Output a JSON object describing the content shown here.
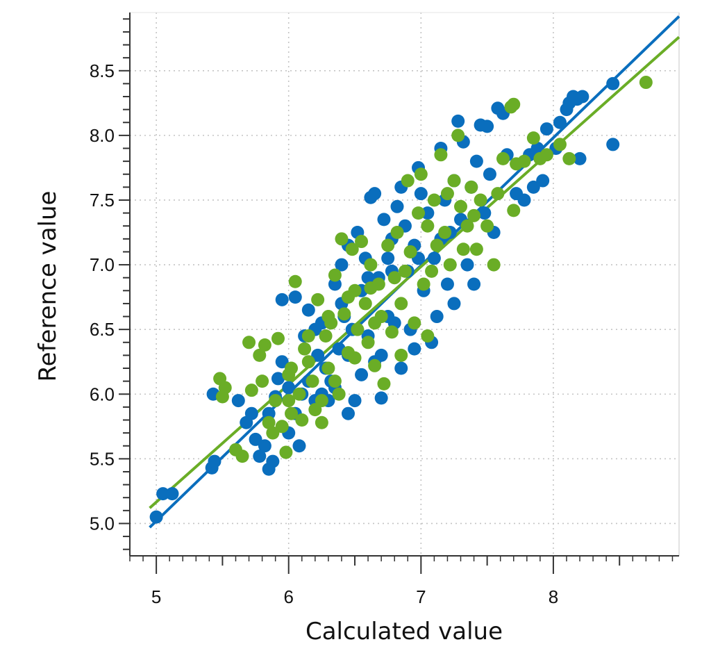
{
  "chart_data": {
    "type": "scatter",
    "title": "",
    "xlabel": "Calculated value",
    "ylabel": "Reference value",
    "xlim": [
      4.8,
      8.95
    ],
    "ylim": [
      4.75,
      8.95
    ],
    "x_ticks": [
      "5",
      "6",
      "7",
      "8"
    ],
    "y_ticks": [
      "5.0",
      "5.5",
      "6.0",
      "6.5",
      "7.0",
      "7.5",
      "8.0",
      "8.5"
    ],
    "grid": true,
    "legend": "none",
    "series": [
      {
        "color": "#0a6ebd",
        "points": [
          [
            5.0,
            5.05
          ],
          [
            5.05,
            5.23
          ],
          [
            5.12,
            5.23
          ],
          [
            5.42,
            5.43
          ],
          [
            5.44,
            5.48
          ],
          [
            5.43,
            6.0
          ],
          [
            5.62,
            5.95
          ],
          [
            5.68,
            5.78
          ],
          [
            5.72,
            5.85
          ],
          [
            5.78,
            5.52
          ],
          [
            5.82,
            5.6
          ],
          [
            5.85,
            5.42
          ],
          [
            5.88,
            5.48
          ],
          [
            5.9,
            5.98
          ],
          [
            5.92,
            6.12
          ],
          [
            5.95,
            6.25
          ],
          [
            5.95,
            6.73
          ],
          [
            6.05,
            6.75
          ],
          [
            6.0,
            5.7
          ],
          [
            6.05,
            5.85
          ],
          [
            6.1,
            6.0
          ],
          [
            6.12,
            6.45
          ],
          [
            6.15,
            6.65
          ],
          [
            6.08,
            5.6
          ],
          [
            6.2,
            5.95
          ],
          [
            6.22,
            6.3
          ],
          [
            6.25,
            6.55
          ],
          [
            6.28,
            6.2
          ],
          [
            6.3,
            5.95
          ],
          [
            6.32,
            6.1
          ],
          [
            6.35,
            6.85
          ],
          [
            6.38,
            6.35
          ],
          [
            6.4,
            7.0
          ],
          [
            6.42,
            6.6
          ],
          [
            6.45,
            6.3
          ],
          [
            6.45,
            7.15
          ],
          [
            6.48,
            6.5
          ],
          [
            6.5,
            5.95
          ],
          [
            6.52,
            7.25
          ],
          [
            6.55,
            6.8
          ],
          [
            6.58,
            7.05
          ],
          [
            6.6,
            6.45
          ],
          [
            6.62,
            7.52
          ],
          [
            6.65,
            7.55
          ],
          [
            6.68,
            6.9
          ],
          [
            6.7,
            6.3
          ],
          [
            6.72,
            7.35
          ],
          [
            6.75,
            7.05
          ],
          [
            6.75,
            6.6
          ],
          [
            6.78,
            7.2
          ],
          [
            6.8,
            6.55
          ],
          [
            6.82,
            7.45
          ],
          [
            6.85,
            7.6
          ],
          [
            6.88,
            7.3
          ],
          [
            6.9,
            6.95
          ],
          [
            6.92,
            6.5
          ],
          [
            6.95,
            7.15
          ],
          [
            6.98,
            7.75
          ],
          [
            7.0,
            7.55
          ],
          [
            7.02,
            6.8
          ],
          [
            7.05,
            7.4
          ],
          [
            7.08,
            6.4
          ],
          [
            7.1,
            7.05
          ],
          [
            7.12,
            6.6
          ],
          [
            7.15,
            7.9
          ],
          [
            7.18,
            7.5
          ],
          [
            7.2,
            6.85
          ],
          [
            7.22,
            7.25
          ],
          [
            7.25,
            7.65
          ],
          [
            7.25,
            6.7
          ],
          [
            7.28,
            8.11
          ],
          [
            7.3,
            7.35
          ],
          [
            7.32,
            7.95
          ],
          [
            7.35,
            7.0
          ],
          [
            7.38,
            7.6
          ],
          [
            7.4,
            6.85
          ],
          [
            7.42,
            7.8
          ],
          [
            7.45,
            8.08
          ],
          [
            7.48,
            7.4
          ],
          [
            7.5,
            8.07
          ],
          [
            7.52,
            7.7
          ],
          [
            7.55,
            7.25
          ],
          [
            7.58,
            8.21
          ],
          [
            7.62,
            8.17
          ],
          [
            7.65,
            7.85
          ],
          [
            7.72,
            7.55
          ],
          [
            7.78,
            7.5
          ],
          [
            7.82,
            7.85
          ],
          [
            7.85,
            7.6
          ],
          [
            7.88,
            7.9
          ],
          [
            7.92,
            7.65
          ],
          [
            7.95,
            8.05
          ],
          [
            8.02,
            7.9
          ],
          [
            8.05,
            8.1
          ],
          [
            8.1,
            8.2
          ],
          [
            8.12,
            8.25
          ],
          [
            8.15,
            8.3
          ],
          [
            8.18,
            8.28
          ],
          [
            8.2,
            7.82
          ],
          [
            8.22,
            8.3
          ],
          [
            8.45,
            8.4
          ],
          [
            8.45,
            7.93
          ],
          [
            6.15,
            6.1
          ],
          [
            6.35,
            6.05
          ],
          [
            6.55,
            6.15
          ],
          [
            6.65,
            6.25
          ],
          [
            6.85,
            6.2
          ],
          [
            6.95,
            6.35
          ],
          [
            6.2,
            6.5
          ],
          [
            6.4,
            6.7
          ],
          [
            6.6,
            6.9
          ],
          [
            6.78,
            6.95
          ],
          [
            6.98,
            7.05
          ],
          [
            7.15,
            7.2
          ],
          [
            5.75,
            5.65
          ],
          [
            5.85,
            5.85
          ],
          [
            6.0,
            6.05
          ],
          [
            6.25,
            6.0
          ],
          [
            6.45,
            5.85
          ],
          [
            6.7,
            5.97
          ]
        ]
      },
      {
        "color": "#6aad26",
        "points": [
          [
            5.48,
            6.12
          ],
          [
            5.5,
            5.98
          ],
          [
            5.52,
            6.05
          ],
          [
            5.6,
            5.57
          ],
          [
            5.65,
            5.52
          ],
          [
            5.7,
            6.4
          ],
          [
            5.72,
            6.03
          ],
          [
            5.78,
            6.3
          ],
          [
            5.8,
            6.1
          ],
          [
            5.82,
            6.38
          ],
          [
            5.85,
            5.78
          ],
          [
            5.9,
            5.95
          ],
          [
            5.92,
            6.43
          ],
          [
            5.95,
            5.75
          ],
          [
            5.98,
            5.55
          ],
          [
            6.0,
            6.15
          ],
          [
            6.02,
            5.85
          ],
          [
            6.05,
            6.87
          ],
          [
            6.08,
            6.0
          ],
          [
            6.12,
            6.35
          ],
          [
            6.15,
            6.25
          ],
          [
            6.18,
            6.1
          ],
          [
            6.2,
            5.88
          ],
          [
            6.22,
            6.73
          ],
          [
            6.25,
            5.78
          ],
          [
            6.28,
            6.45
          ],
          [
            6.3,
            6.2
          ],
          [
            6.32,
            6.55
          ],
          [
            6.35,
            6.92
          ],
          [
            6.38,
            6.0
          ],
          [
            6.4,
            7.2
          ],
          [
            6.42,
            6.62
          ],
          [
            6.45,
            6.32
          ],
          [
            6.48,
            7.12
          ],
          [
            6.5,
            6.8
          ],
          [
            6.52,
            6.5
          ],
          [
            6.55,
            7.18
          ],
          [
            6.58,
            6.7
          ],
          [
            6.6,
            6.4
          ],
          [
            6.62,
            7.0
          ],
          [
            6.65,
            6.22
          ],
          [
            6.68,
            6.85
          ],
          [
            6.7,
            6.6
          ],
          [
            6.72,
            6.08
          ],
          [
            6.75,
            7.15
          ],
          [
            6.78,
            6.48
          ],
          [
            6.8,
            6.9
          ],
          [
            6.82,
            7.25
          ],
          [
            6.85,
            6.7
          ],
          [
            6.88,
            6.95
          ],
          [
            6.9,
            7.65
          ],
          [
            6.92,
            7.1
          ],
          [
            6.95,
            6.55
          ],
          [
            6.98,
            7.4
          ],
          [
            7.0,
            7.7
          ],
          [
            7.02,
            6.85
          ],
          [
            7.05,
            7.3
          ],
          [
            7.08,
            6.95
          ],
          [
            7.1,
            7.5
          ],
          [
            7.12,
            7.15
          ],
          [
            7.15,
            7.85
          ],
          [
            7.18,
            7.25
          ],
          [
            7.2,
            7.55
          ],
          [
            7.22,
            7.0
          ],
          [
            7.25,
            7.65
          ],
          [
            7.28,
            8.0
          ],
          [
            7.3,
            7.45
          ],
          [
            7.32,
            7.12
          ],
          [
            7.35,
            7.3
          ],
          [
            7.38,
            7.6
          ],
          [
            7.4,
            7.38
          ],
          [
            7.42,
            7.12
          ],
          [
            7.45,
            7.5
          ],
          [
            7.5,
            7.3
          ],
          [
            7.55,
            7.0
          ],
          [
            7.58,
            7.55
          ],
          [
            7.62,
            7.82
          ],
          [
            7.68,
            8.22
          ],
          [
            7.7,
            7.42
          ],
          [
            7.72,
            7.78
          ],
          [
            7.78,
            7.8
          ],
          [
            7.85,
            7.98
          ],
          [
            7.9,
            7.82
          ],
          [
            7.95,
            7.85
          ],
          [
            8.05,
            7.93
          ],
          [
            8.12,
            7.82
          ],
          [
            8.7,
            8.41
          ],
          [
            7.7,
            8.24
          ],
          [
            7.05,
            6.45
          ],
          [
            6.85,
            6.3
          ],
          [
            6.0,
            5.95
          ],
          [
            6.1,
            5.8
          ],
          [
            6.25,
            5.95
          ],
          [
            6.35,
            6.1
          ],
          [
            6.5,
            6.28
          ],
          [
            6.65,
            6.55
          ],
          [
            5.88,
            5.7
          ],
          [
            6.02,
            6.2
          ],
          [
            6.15,
            6.45
          ],
          [
            6.3,
            6.6
          ],
          [
            6.45,
            6.75
          ],
          [
            6.62,
            6.82
          ]
        ]
      }
    ],
    "fit_lines": [
      {
        "color": "#0a6ebd",
        "x": [
          4.95,
          8.95
        ],
        "y": [
          4.97,
          8.92
        ]
      },
      {
        "color": "#6aad26",
        "x": [
          4.95,
          8.95
        ],
        "y": [
          5.12,
          8.76
        ]
      }
    ]
  }
}
